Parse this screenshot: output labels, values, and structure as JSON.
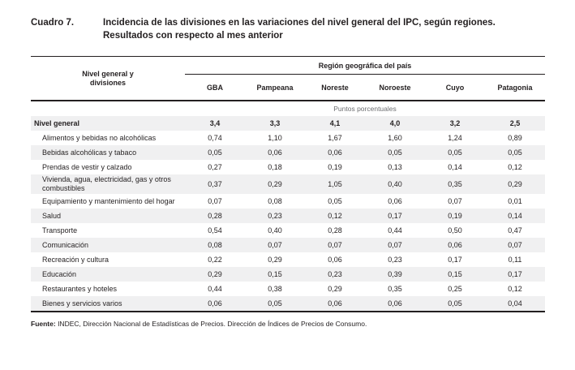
{
  "title": {
    "label": "Cuadro 7.",
    "line1": "Incidencia de las divisiones en las variaciones del nivel general del IPC, según regiones.",
    "line2": "Resultados con respecto al mes anterior"
  },
  "table": {
    "row_header": "Nivel general y divisiones",
    "group_header": "Región geográfica del país",
    "columns": [
      "GBA",
      "Pampeana",
      "Noreste",
      "Noroeste",
      "Cuyo",
      "Patagonia"
    ],
    "units_label": "Puntos porcentuales",
    "total_row": {
      "label": "Nivel general",
      "values": [
        "3,4",
        "3,3",
        "4,1",
        "4,0",
        "3,2",
        "2,5"
      ]
    },
    "rows": [
      {
        "label": "Alimentos y bebidas no alcohólicas",
        "values": [
          "0,74",
          "1,10",
          "1,67",
          "1,60",
          "1,24",
          "0,89"
        ]
      },
      {
        "label": "Bebidas alcohólicas y tabaco",
        "values": [
          "0,05",
          "0,06",
          "0,06",
          "0,05",
          "0,05",
          "0,05"
        ]
      },
      {
        "label": "Prendas de vestir y calzado",
        "values": [
          "0,27",
          "0,18",
          "0,19",
          "0,13",
          "0,14",
          "0,12"
        ]
      },
      {
        "label": "Vivienda, agua, electricidad, gas y otros combustibles",
        "values": [
          "0,37",
          "0,29",
          "1,05",
          "0,40",
          "0,35",
          "0,29"
        ]
      },
      {
        "label": "Equipamiento y mantenimiento del hogar",
        "values": [
          "0,07",
          "0,08",
          "0,05",
          "0,06",
          "0,07",
          "0,01"
        ]
      },
      {
        "label": "Salud",
        "values": [
          "0,28",
          "0,23",
          "0,12",
          "0,17",
          "0,19",
          "0,14"
        ]
      },
      {
        "label": "Transporte",
        "values": [
          "0,54",
          "0,40",
          "0,28",
          "0,44",
          "0,50",
          "0,47"
        ]
      },
      {
        "label": "Comunicación",
        "values": [
          "0,08",
          "0,07",
          "0,07",
          "0,07",
          "0,06",
          "0,07"
        ]
      },
      {
        "label": "Recreación y cultura",
        "values": [
          "0,22",
          "0,29",
          "0,06",
          "0,23",
          "0,17",
          "0,11"
        ]
      },
      {
        "label": "Educación",
        "values": [
          "0,29",
          "0,15",
          "0,23",
          "0,39",
          "0,15",
          "0,17"
        ]
      },
      {
        "label": "Restaurantes y hoteles",
        "values": [
          "0,44",
          "0,38",
          "0,29",
          "0,35",
          "0,25",
          "0,12"
        ]
      },
      {
        "label": "Bienes y servicios varios",
        "values": [
          "0,06",
          "0,05",
          "0,06",
          "0,06",
          "0,05",
          "0,04"
        ]
      }
    ]
  },
  "footer": {
    "source_label": "Fuente:",
    "source_text": " INDEC, Dirección Nacional de Estadísticas de Precios. Dirección de Índices de Precios de Consumo."
  },
  "colors": {
    "ink": "#231f20",
    "stripe": "#f0f0f1",
    "muted": "#6d6e71"
  }
}
